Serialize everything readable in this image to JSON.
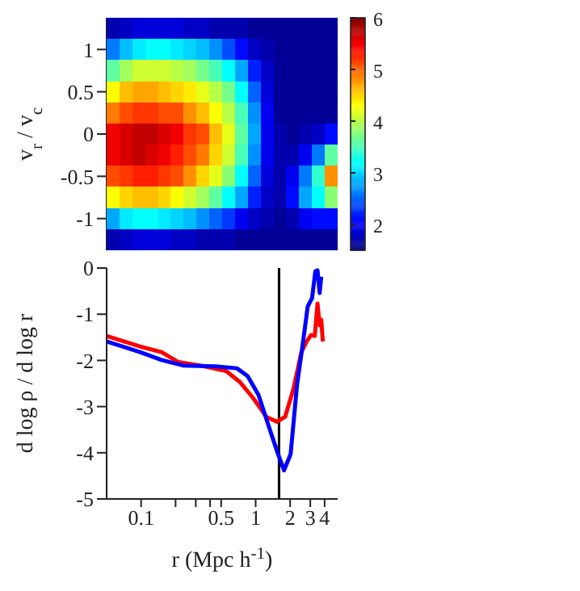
{
  "chart_data": [
    {
      "type": "heatmap",
      "ylabel": "v$_{r}$ / v$_{c}$",
      "categories": [
        null,
        null,
        null,
        null,
        null,
        null,
        null,
        null,
        null,
        null,
        null,
        null,
        null,
        null,
        null,
        null,
        null,
        null
      ],
      "y_categories": [
        null,
        "1",
        null,
        "0.5",
        null,
        "0",
        null,
        "-0.5",
        null,
        "-1",
        null
      ],
      "cells": [
        [
          1.7,
          1.8,
          1.9,
          1.9,
          1.9,
          1.9,
          1.8,
          1.8,
          1.7,
          1.7,
          1.7,
          1.6,
          1.6,
          1.6,
          1.6,
          1.6,
          1.6,
          1.6
        ],
        [
          2.6,
          2.9,
          3.1,
          3.2,
          3.2,
          3.1,
          3.0,
          2.9,
          2.7,
          2.4,
          2.1,
          1.8,
          1.7,
          1.6,
          1.6,
          1.6,
          1.6,
          1.6
        ],
        [
          3.6,
          3.9,
          4.1,
          4.1,
          4.1,
          4.0,
          3.9,
          3.7,
          3.5,
          3.2,
          2.8,
          2.2,
          1.8,
          1.6,
          1.6,
          1.6,
          1.6,
          1.6
        ],
        [
          4.3,
          4.6,
          4.7,
          4.7,
          4.6,
          4.5,
          4.4,
          4.2,
          4.0,
          3.7,
          3.2,
          2.5,
          1.9,
          1.6,
          1.6,
          1.6,
          1.6,
          1.6
        ],
        [
          4.9,
          5.1,
          5.2,
          5.2,
          5.1,
          5.1,
          4.8,
          4.6,
          4.3,
          4.0,
          3.5,
          2.7,
          2.0,
          1.6,
          1.6,
          1.6,
          1.6,
          1.6
        ],
        [
          5.5,
          5.6,
          5.7,
          5.7,
          5.6,
          5.5,
          5.2,
          5.1,
          4.6,
          4.2,
          3.6,
          2.8,
          2.0,
          1.7,
          1.6,
          1.7,
          1.8,
          2.1
        ],
        [
          5.5,
          5.6,
          5.7,
          5.6,
          5.5,
          5.3,
          5.1,
          4.9,
          4.5,
          4.1,
          3.5,
          2.7,
          2.0,
          1.7,
          1.7,
          2.0,
          2.6,
          3.6
        ],
        [
          5.1,
          5.2,
          5.3,
          5.3,
          5.2,
          5.1,
          4.8,
          4.5,
          4.2,
          3.8,
          3.2,
          2.5,
          1.9,
          1.7,
          2.0,
          2.6,
          3.4,
          4.8
        ],
        [
          4.3,
          4.5,
          4.6,
          4.6,
          4.5,
          4.3,
          4.1,
          3.9,
          3.6,
          3.2,
          2.8,
          2.2,
          1.8,
          1.7,
          2.1,
          2.8,
          3.2,
          3.8
        ],
        [
          2.8,
          3.1,
          3.2,
          3.2,
          3.1,
          3.0,
          2.9,
          2.7,
          2.5,
          2.3,
          2.0,
          1.8,
          1.7,
          1.6,
          1.7,
          2.0,
          2.1,
          2.1
        ],
        [
          1.7,
          1.8,
          1.9,
          1.9,
          1.9,
          1.8,
          1.8,
          1.7,
          1.7,
          1.7,
          1.6,
          1.6,
          1.6,
          1.6,
          1.6,
          1.6,
          1.6,
          1.6
        ]
      ],
      "clim": [
        1.5,
        6
      ],
      "cticks": [
        2,
        3,
        4,
        5,
        6
      ],
      "tick_labels": "y"
    },
    {
      "type": "line",
      "xlabel": "r (Mpc h$^{-1}$)",
      "ylabel": "d log ρ / d log r",
      "log": "x",
      "xlim": [
        0.05,
        5.2
      ],
      "xticks": [
        0.1,
        {
          "value": 0.2,
          "label": null
        },
        {
          "value": 0.3,
          "label": null
        },
        {
          "value": 0.4,
          "label": null
        },
        0.5,
        1,
        2,
        3,
        4
      ],
      "ylim": [
        -5,
        0
      ],
      "yticks": [
        -5,
        -4,
        -3,
        -2,
        -1,
        0
      ],
      "ref_lines": [
        {
          "axis": "x",
          "value": 1.6,
          "color": "#000000"
        }
      ],
      "series": [
        {
          "color": "#ff0000",
          "x": [
            0.05,
            0.098,
            0.151,
            0.209,
            0.358,
            0.552,
            0.723,
            0.948,
            1.24,
            1.54,
            1.81,
            2.13,
            2.51,
            2.79,
            3.05,
            3.28,
            3.47,
            3.62,
            3.74,
            3.86
          ],
          "values": [
            -1.47,
            -1.7,
            -1.82,
            -2.03,
            -2.13,
            -2.23,
            -2.46,
            -2.81,
            -3.22,
            -3.33,
            -3.22,
            -2.63,
            -1.82,
            -1.59,
            -1.45,
            -1.47,
            -0.77,
            -1.24,
            -1.12,
            -1.59
          ]
        },
        {
          "color": "#0000ff",
          "x": [
            0.05,
            0.098,
            0.151,
            0.232,
            0.445,
            0.685,
            0.851,
            1.06,
            1.31,
            1.54,
            1.77,
            2.02,
            2.3,
            2.56,
            2.85,
            3.11,
            3.32,
            3.47,
            3.62,
            3.74
          ],
          "values": [
            -1.59,
            -1.82,
            -1.99,
            -2.11,
            -2.13,
            -2.17,
            -2.34,
            -2.75,
            -3.45,
            -3.97,
            -4.38,
            -4.03,
            -2.52,
            -1.7,
            -0.83,
            -0.65,
            -0.07,
            -0.05,
            -0.54,
            -0.19
          ]
        }
      ]
    }
  ]
}
